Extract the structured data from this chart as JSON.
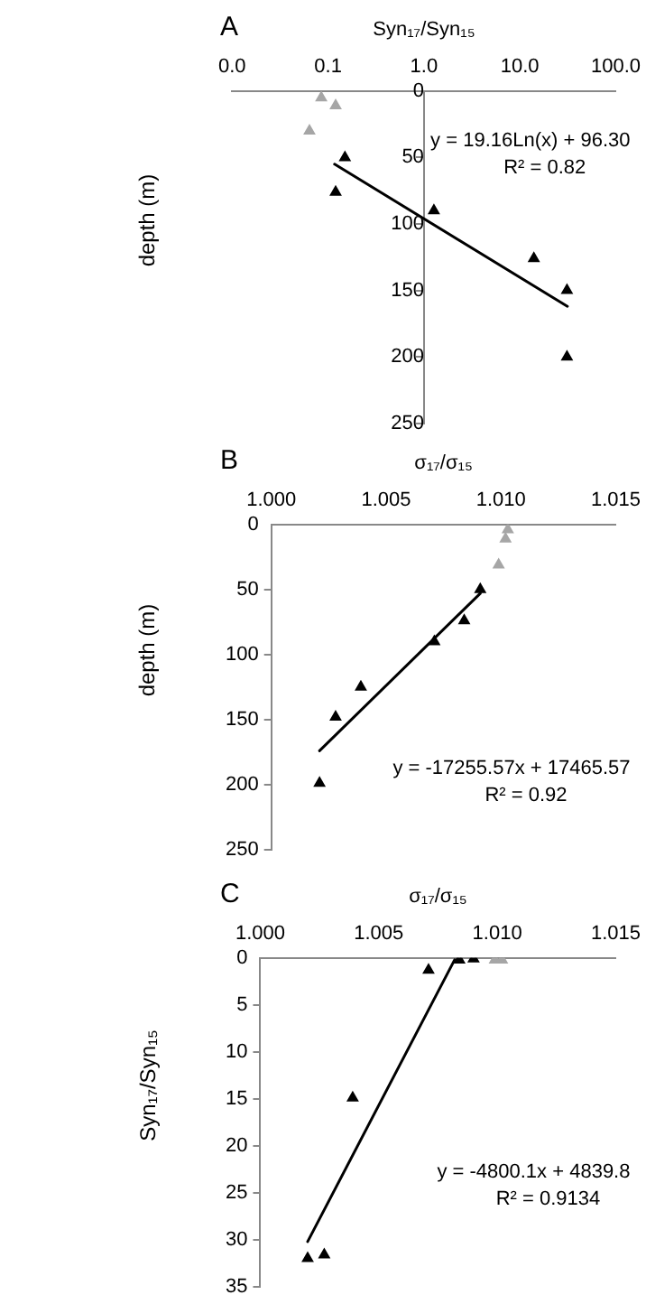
{
  "chart_data": [
    {
      "type": "scatter",
      "title": "A",
      "xlabel": "Syn₁₇/Syn₁₅",
      "ylabel": "depth (m)",
      "log": "x",
      "marker": "triangle",
      "grid": false,
      "legend": false,
      "xlim": [
        0.01,
        100
      ],
      "xticks": [
        {
          "value": 0.01,
          "label": "0.0"
        },
        {
          "value": 0.1,
          "label": "0.1"
        },
        {
          "value": 1,
          "label": "1.0"
        },
        {
          "value": 10,
          "label": "10.0"
        },
        {
          "value": 100,
          "label": "100.0"
        }
      ],
      "ylim": [
        250,
        0
      ],
      "yticks": [
        0,
        50,
        100,
        150,
        200,
        250
      ],
      "series": [
        {
          "color": "#000000",
          "x": [
            0.15,
            0.12,
            1.27,
            14,
            31,
            31
          ],
          "values": [
            50,
            76,
            90,
            126,
            150,
            200
          ]
        },
        {
          "color": "#a6a6a6",
          "x": [
            0.085,
            0.12,
            0.064
          ],
          "values": [
            5,
            11,
            30
          ]
        },
        {
          "type": "line",
          "marker": "none",
          "color": "#000000",
          "x": [
            0.117,
            31.3
          ],
          "values": [
            55,
            162
          ]
        }
      ],
      "annotations": [
        "y = 19.16Ln(x) + 96.30",
        "R² = 0.82"
      ]
    },
    {
      "type": "scatter",
      "title": "B",
      "xlabel": "σ₁₇/σ₁₅",
      "ylabel": "depth (m)",
      "marker": "triangle",
      "grid": false,
      "legend": false,
      "xlim": [
        1.0,
        1.015
      ],
      "xticks": [
        {
          "value": 1.0,
          "label": "1.000"
        },
        {
          "value": 1.005,
          "label": "1.005"
        },
        {
          "value": 1.01,
          "label": "1.010"
        },
        {
          "value": 1.015,
          "label": "1.015"
        }
      ],
      "ylim": [
        250,
        0
      ],
      "yticks": [
        0,
        50,
        100,
        150,
        200,
        250
      ],
      "series": [
        {
          "color": "#000000",
          "x": [
            1.0091,
            1.0084,
            1.0071,
            1.0039,
            1.0028,
            1.0021
          ],
          "values": [
            50,
            74,
            90,
            125,
            148,
            199
          ]
        },
        {
          "color": "#a6a6a6",
          "x": [
            1.0103,
            1.0102,
            1.0099
          ],
          "values": [
            4,
            11,
            31
          ]
        },
        {
          "type": "line",
          "marker": "none",
          "color": "#000000",
          "x": [
            1.0021,
            1.0091
          ],
          "values": [
            174,
            53
          ]
        }
      ],
      "annotations": [
        "y = -17255.57x + 17465.57",
        "R² = 0.92"
      ]
    },
    {
      "type": "scatter",
      "title": "C",
      "xlabel": "σ₁₇/σ₁₅",
      "ylabel": "Syn₁₇/Syn₁₅",
      "marker": "triangle",
      "grid": false,
      "legend": false,
      "xlim": [
        1.0,
        1.015
      ],
      "xticks": [
        {
          "value": 1.0,
          "label": "1.000"
        },
        {
          "value": 1.005,
          "label": "1.005"
        },
        {
          "value": 1.01,
          "label": "1.010"
        },
        {
          "value": 1.015,
          "label": "1.015"
        }
      ],
      "ylim": [
        35,
        0
      ],
      "yticks": [
        0,
        5,
        10,
        15,
        20,
        25,
        30,
        35
      ],
      "series": [
        {
          "color": "#000000",
          "x": [
            1.002,
            1.0027,
            1.0039,
            1.0071,
            1.0084,
            1.009
          ],
          "values": [
            32,
            31.6,
            14.9,
            1.3,
            0.2,
            0.1
          ]
        },
        {
          "color": "#a6a6a6",
          "x": [
            1.0099,
            1.0102
          ],
          "values": [
            0.2,
            0.2
          ]
        },
        {
          "type": "line",
          "marker": "none",
          "color": "#000000",
          "x": [
            1.002,
            1.0082
          ],
          "values": [
            30.2,
            0.2
          ]
        }
      ],
      "annotations": [
        "y = -4800.1x + 4839.8",
        "R² = 0.9134"
      ]
    }
  ]
}
